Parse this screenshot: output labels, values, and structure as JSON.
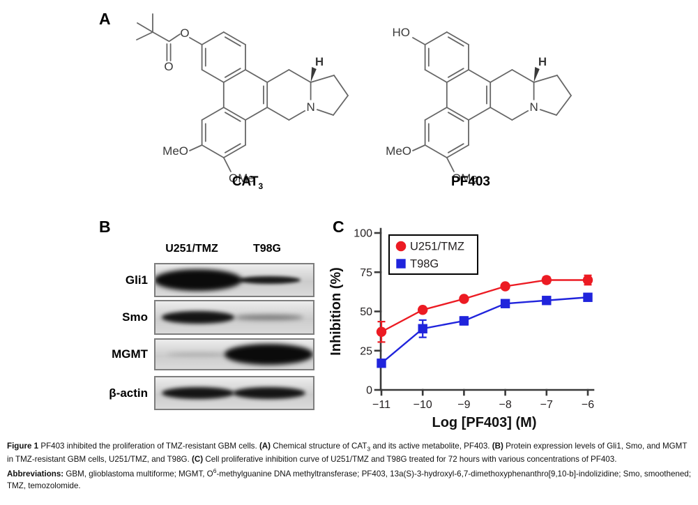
{
  "figure": {
    "panelA": {
      "label": "A",
      "molecules": [
        {
          "name_main": "CAT",
          "name_sub": "3",
          "variant": "pivaloyl-ester",
          "labels": {
            "o_ester": "O",
            "o_carbonyl": "O",
            "meo": "MeO",
            "ome": "OMe",
            "n": "N",
            "h": "H"
          }
        },
        {
          "name_main": "PF403",
          "name_sub": "",
          "variant": "hydroxyl",
          "labels": {
            "ho": "HO",
            "meo": "MeO",
            "ome": "OMe",
            "n": "N",
            "h": "H"
          }
        }
      ]
    },
    "panelB": {
      "label": "B",
      "col_headers": [
        "U251/TMZ",
        "T98G"
      ],
      "rows": [
        {
          "label": "Gli1",
          "bands": [
            "very-strong",
            "medium"
          ]
        },
        {
          "label": "Smo",
          "bands": [
            "strong",
            "faint"
          ]
        },
        {
          "label": "MGMT",
          "bands": [
            "very-faint",
            "very-strong"
          ]
        },
        {
          "label": "β-actin",
          "bands": [
            "strong",
            "strong"
          ]
        }
      ]
    },
    "panelC": {
      "label": "C"
    }
  },
  "chart_data": {
    "type": "line",
    "title": "",
    "xlabel": "Log [PF403] (M)",
    "ylabel": "Inhibition (%)",
    "x": [
      -11,
      -10,
      -9,
      -8,
      -7,
      -6
    ],
    "xlim": [
      -11,
      -6
    ],
    "ylim": [
      0,
      100
    ],
    "yticks": [
      0,
      25,
      50,
      75,
      100
    ],
    "grid": false,
    "legend_position": "top-left-inside",
    "series": [
      {
        "name": "U251/TMZ",
        "color": "#ec1b23",
        "marker": "circle",
        "values": [
          37,
          51,
          58,
          66,
          70,
          70
        ],
        "errors": [
          6.5,
          0,
          0,
          0,
          2,
          3
        ]
      },
      {
        "name": "T98G",
        "color": "#2024dc",
        "marker": "square",
        "values": [
          17,
          39,
          44,
          55,
          57,
          59
        ],
        "errors": [
          2,
          5.5,
          2.5,
          0,
          0,
          0
        ]
      }
    ]
  },
  "caption": {
    "segments": [
      {
        "t": "Figure 1",
        "b": true
      },
      {
        "t": " PF403 inhibited the proliferation of TMZ-resistant GBM cells. "
      },
      {
        "t": "(A)",
        "b": true
      },
      {
        "t": " Chemical structure of CAT"
      },
      {
        "t": "3",
        "sub": true
      },
      {
        "t": " and its active metabolite, PF403. "
      },
      {
        "t": "(B)",
        "b": true
      },
      {
        "t": " Protein expression levels of Gli1, Smo, and MGMT in TMZ-resistant GBM cells, U251/TMZ, and T98G. "
      },
      {
        "t": "(C)",
        "b": true
      },
      {
        "t": " Cell proliferative inhibition curve of U251/TMZ and T98G treated for 72 hours with various concentrations of PF403."
      }
    ],
    "abbr_segments": [
      {
        "t": "Abbreviations:",
        "b": true
      },
      {
        "t": " GBM, glioblastoma multiforme; MGMT, O"
      },
      {
        "t": "6",
        "sup": true
      },
      {
        "t": "-methylguanine DNA methyltransferase; PF403, 13a(S)-3-hydroxyl-6,7-dimethoxyphenanthro[9,10-b]-indolizidine; Smo, smoothened; TMZ, temozolomide."
      }
    ]
  }
}
